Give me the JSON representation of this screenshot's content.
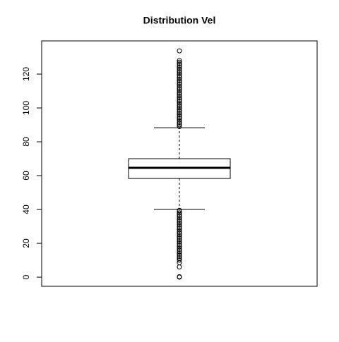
{
  "chart_data": {
    "type": "boxplot",
    "title": "Distribution Vel",
    "ylim": [
      -5.4,
      139.6
    ],
    "yticks": [
      0,
      20,
      40,
      60,
      80,
      100,
      120
    ],
    "stats": {
      "whisker_low": 40,
      "q1": 58.3,
      "median": 64.6,
      "q3": 70,
      "whisker_high": 88.3
    },
    "outliers": [
      0,
      0.3,
      6,
      8.5,
      10,
      11,
      12,
      13,
      14,
      15,
      16,
      17,
      18,
      19,
      20,
      21,
      22,
      23,
      24,
      25,
      26,
      27,
      28,
      29,
      30,
      31,
      32,
      33,
      34,
      35,
      36,
      37,
      38,
      39,
      39.5,
      89,
      90,
      91,
      92,
      93,
      94,
      95,
      96,
      97,
      98,
      99,
      100,
      101,
      102,
      103,
      104,
      105,
      106,
      107,
      108,
      109,
      110,
      111,
      112,
      113,
      114,
      115,
      116,
      117,
      118,
      119,
      120,
      121,
      122,
      123,
      124,
      125,
      126,
      127,
      128,
      133.7
    ]
  }
}
